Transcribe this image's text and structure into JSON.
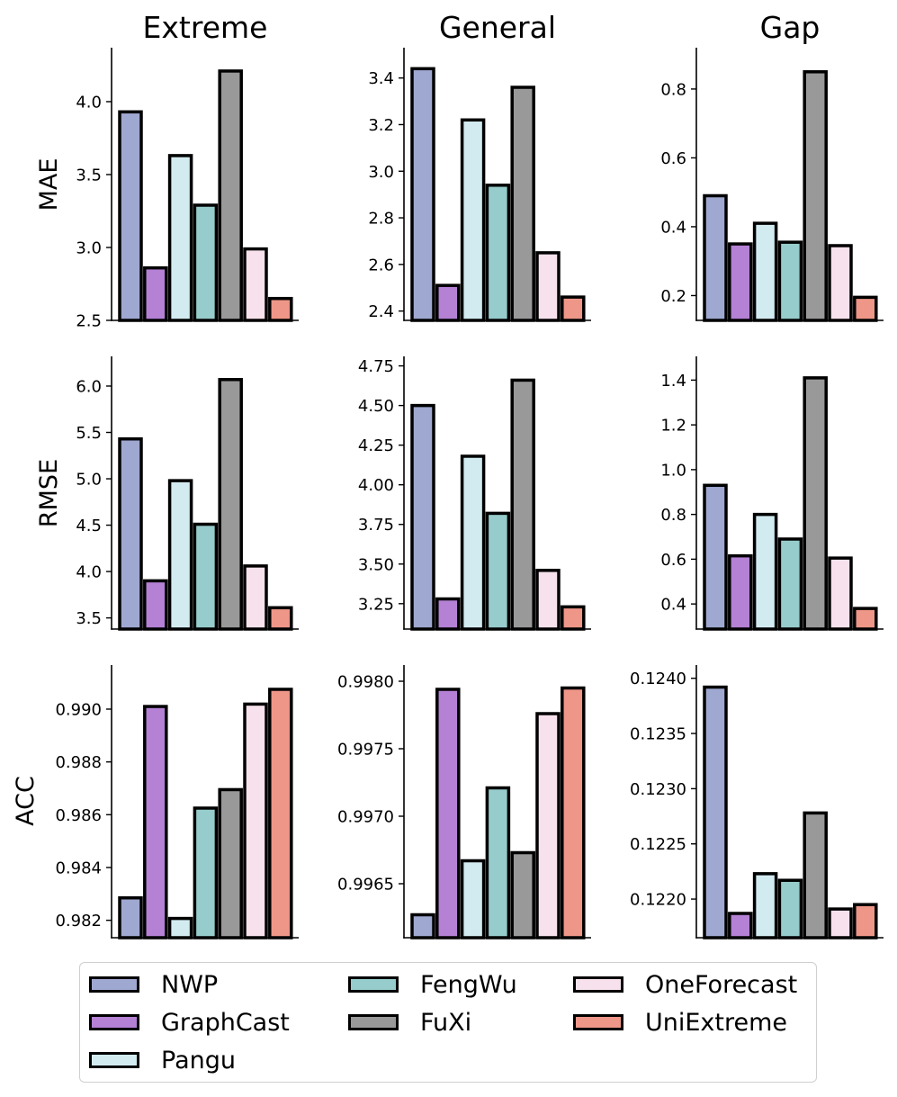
{
  "columns": [
    "Extreme",
    "General",
    "Gap"
  ],
  "rows": [
    "MAE",
    "RMSE",
    "ACC"
  ],
  "models": [
    {
      "name": "NWP",
      "color": "#9fa8d0"
    },
    {
      "name": "GraphCast",
      "color": "#b481d5"
    },
    {
      "name": "Pangu",
      "color": "#d2ebf0"
    },
    {
      "name": "FengWu",
      "color": "#96cccb"
    },
    {
      "name": "FuXi",
      "color": "#999999"
    },
    {
      "name": "OneForecast",
      "color": "#f7e1ec"
    },
    {
      "name": "UniExtreme",
      "color": "#ee9688"
    }
  ],
  "chart_data": [
    {
      "type": "bar",
      "row": "MAE",
      "col": "Extreme",
      "categories": [
        "NWP",
        "GraphCast",
        "Pangu",
        "FengWu",
        "FuXi",
        "OneForecast",
        "UniExtreme"
      ],
      "values": [
        3.93,
        2.86,
        3.63,
        3.29,
        4.21,
        2.99,
        2.65
      ],
      "ylim": [
        2.5,
        4.37
      ],
      "ticks": [
        2.5,
        3.0,
        3.5,
        4.0
      ],
      "tick_labels": [
        "2.5",
        "3.0",
        "3.5",
        "4.0"
      ]
    },
    {
      "type": "bar",
      "row": "MAE",
      "col": "General",
      "categories": [
        "NWP",
        "GraphCast",
        "Pangu",
        "FengWu",
        "FuXi",
        "OneForecast",
        "UniExtreme"
      ],
      "values": [
        3.44,
        2.51,
        3.22,
        2.94,
        3.36,
        2.65,
        2.46
      ],
      "ylim": [
        2.36,
        3.53
      ],
      "ticks": [
        2.4,
        2.6,
        2.8,
        3.0,
        3.2,
        3.4
      ],
      "tick_labels": [
        "2.4",
        "2.6",
        "2.8",
        "3.0",
        "3.2",
        "3.4"
      ]
    },
    {
      "type": "bar",
      "row": "MAE",
      "col": "Gap",
      "categories": [
        "NWP",
        "GraphCast",
        "Pangu",
        "FengWu",
        "FuXi",
        "OneForecast",
        "UniExtreme"
      ],
      "values": [
        0.49,
        0.35,
        0.41,
        0.355,
        0.85,
        0.345,
        0.195
      ],
      "ylim": [
        0.128,
        0.92
      ],
      "ticks": [
        0.2,
        0.4,
        0.6,
        0.8
      ],
      "tick_labels": [
        "0.2",
        "0.4",
        "0.6",
        "0.8"
      ]
    },
    {
      "type": "bar",
      "row": "RMSE",
      "col": "Extreme",
      "categories": [
        "NWP",
        "GraphCast",
        "Pangu",
        "FengWu",
        "FuXi",
        "OneForecast",
        "UniExtreme"
      ],
      "values": [
        5.43,
        3.9,
        4.98,
        4.51,
        6.07,
        4.06,
        3.61
      ],
      "ylim": [
        3.38,
        6.32
      ],
      "ticks": [
        3.5,
        4.0,
        4.5,
        5.0,
        5.5,
        6.0
      ],
      "tick_labels": [
        "3.5",
        "4.0",
        "4.5",
        "5.0",
        "5.5",
        "6.0"
      ]
    },
    {
      "type": "bar",
      "row": "RMSE",
      "col": "General",
      "categories": [
        "NWP",
        "GraphCast",
        "Pangu",
        "FengWu",
        "FuXi",
        "OneForecast",
        "UniExtreme"
      ],
      "values": [
        4.5,
        3.28,
        4.18,
        3.82,
        4.66,
        3.46,
        3.23
      ],
      "ylim": [
        3.09,
        4.81
      ],
      "ticks": [
        3.25,
        3.5,
        3.75,
        4.0,
        4.25,
        4.5,
        4.75
      ],
      "tick_labels": [
        "3.25",
        "3.50",
        "3.75",
        "4.00",
        "4.25",
        "4.50",
        "4.75"
      ]
    },
    {
      "type": "bar",
      "row": "RMSE",
      "col": "Gap",
      "categories": [
        "NWP",
        "GraphCast",
        "Pangu",
        "FengWu",
        "FuXi",
        "OneForecast",
        "UniExtreme"
      ],
      "values": [
        0.93,
        0.615,
        0.8,
        0.69,
        1.41,
        0.605,
        0.38
      ],
      "ylim": [
        0.288,
        1.506
      ],
      "ticks": [
        0.4,
        0.6,
        0.8,
        1.0,
        1.2,
        1.4
      ],
      "tick_labels": [
        "0.4",
        "0.6",
        "0.8",
        "1.0",
        "1.2",
        "1.4"
      ]
    },
    {
      "type": "bar",
      "row": "ACC",
      "col": "Extreme",
      "categories": [
        "NWP",
        "GraphCast",
        "Pangu",
        "FengWu",
        "FuXi",
        "OneForecast",
        "UniExtreme"
      ],
      "values": [
        0.98285,
        0.9901,
        0.98207,
        0.98625,
        0.98695,
        0.99019,
        0.99075
      ],
      "ylim": [
        0.98134,
        0.99167
      ],
      "ticks": [
        0.982,
        0.984,
        0.986,
        0.988,
        0.99
      ],
      "tick_labels": [
        "0.982",
        "0.984",
        "0.986",
        "0.988",
        "0.990"
      ]
    },
    {
      "type": "bar",
      "row": "ACC",
      "col": "General",
      "categories": [
        "NWP",
        "GraphCast",
        "Pangu",
        "FengWu",
        "FuXi",
        "OneForecast",
        "UniExtreme"
      ],
      "values": [
        0.99627,
        0.99794,
        0.99667,
        0.99721,
        0.99673,
        0.99776,
        0.99795
      ],
      "ylim": [
        0.9961,
        0.99812
      ],
      "ticks": [
        0.9965,
        0.997,
        0.9975,
        0.998
      ],
      "tick_labels": [
        "0.9965",
        "0.9970",
        "0.9975",
        "0.9980"
      ]
    },
    {
      "type": "bar",
      "row": "ACC",
      "col": "Gap",
      "categories": [
        "NWP",
        "GraphCast",
        "Pangu",
        "FengWu",
        "FuXi",
        "OneForecast",
        "UniExtreme"
      ],
      "values": [
        0.12392,
        0.12187,
        0.12223,
        0.12217,
        0.12278,
        0.12191,
        0.12195
      ],
      "ylim": [
        0.12165,
        0.12412
      ],
      "ticks": [
        0.122,
        0.1225,
        0.123,
        0.1235,
        0.124
      ],
      "tick_labels": [
        "0.1220",
        "0.1225",
        "0.1230",
        "0.1235",
        "0.1240"
      ]
    }
  ]
}
